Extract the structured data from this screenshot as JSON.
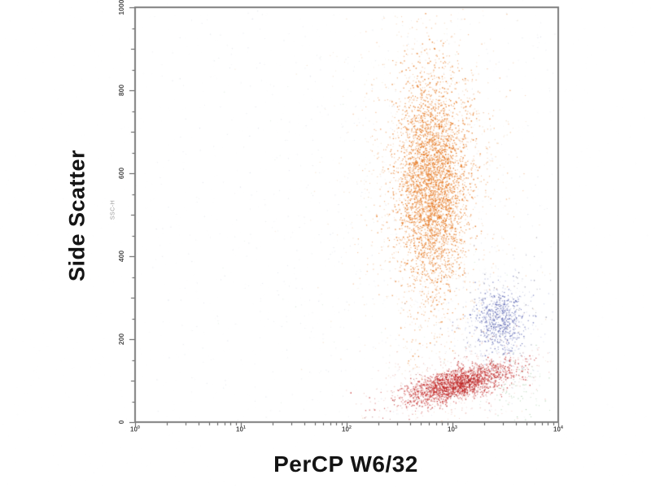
{
  "page": {
    "background": "#ffffff"
  },
  "chart_data": {
    "type": "scatter",
    "title": "",
    "xlabel": "PerCP W6/32",
    "ylabel": "Side Scatter",
    "axis_sublabel": "SSC-H",
    "x_scale": "log10",
    "x_decades": [
      0,
      4
    ],
    "x_tick_exponents": [
      0,
      1,
      2,
      3,
      4
    ],
    "ylim": [
      0,
      1000
    ],
    "y_major_ticks": [
      0,
      200,
      400,
      600,
      800,
      1000
    ],
    "y_minor_step": 50,
    "grid": false,
    "legend": "none",
    "frame_color": "#7d7d7d",
    "tick_color": "#555555",
    "tick_label_color": "#4f4f4f",
    "axis_title_color": "#141414",
    "populations": [
      {
        "name": "background-haze",
        "distribution": "uniform",
        "x_decade_range": [
          0.15,
          3.97
        ],
        "y_range": [
          10,
          995
        ],
        "count": 320,
        "color": "#9aa3b5",
        "alpha": 0.3,
        "radius": 0.9
      },
      {
        "name": "mid-haze",
        "distribution": "gaussian",
        "cx_decade": 2.65,
        "cy_units": 430,
        "sx_decade": 0.85,
        "sy_units": 270,
        "count": 300,
        "color": "#97a0b2",
        "alpha": 0.28,
        "radius": 0.9
      },
      {
        "name": "stray-blue-haze",
        "distribution": "uniform",
        "x_decade_range": [
          0.3,
          3.95
        ],
        "y_range": [
          10,
          980
        ],
        "count": 120,
        "color": "#7f8ab0",
        "alpha": 0.3,
        "radius": 0.9
      },
      {
        "name": "orange-halo",
        "distribution": "gaussian",
        "cx_decade": 2.8,
        "cy_units": 570,
        "sx_decade": 0.5,
        "sy_units": 310,
        "count": 550,
        "color": "#d99a55",
        "alpha": 0.35,
        "radius": 1
      },
      {
        "name": "orange-mid",
        "distribution": "gaussian",
        "cx_decade": 2.8,
        "cy_units": 580,
        "sx_decade": 0.27,
        "sy_units": 195,
        "count": 1300,
        "color": "#e8812d",
        "alpha": 0.55,
        "radius": 1.1
      },
      {
        "name": "orange-core",
        "distribution": "gaussian",
        "cx_decade": 2.8,
        "cy_units": 575,
        "sx_decade": 0.16,
        "sy_units": 125,
        "count": 2800,
        "color": "#e46f12",
        "alpha": 0.9,
        "radius": 1.2
      },
      {
        "name": "blue-halo",
        "distribution": "gaussian",
        "cx_decade": 3.44,
        "cy_units": 243,
        "sx_decade": 0.21,
        "sy_units": 68,
        "count": 260,
        "color": "#8590cc",
        "alpha": 0.5,
        "radius": 1
      },
      {
        "name": "blue-core",
        "distribution": "gaussian",
        "cx_decade": 3.44,
        "cy_units": 243,
        "sx_decade": 0.115,
        "sy_units": 37,
        "count": 520,
        "color": "#4a55aa",
        "alpha": 0.85,
        "radius": 1.1
      },
      {
        "name": "blue-dark-specks",
        "distribution": "gaussian",
        "cx_decade": 3.44,
        "cy_units": 243,
        "sx_decade": 0.26,
        "sy_units": 85,
        "count": 90,
        "color": "#3c4066",
        "alpha": 0.6,
        "radius": 1
      },
      {
        "name": "red-halo",
        "distribution": "gaussian",
        "cx_decade": 3.04,
        "cy_units": 95,
        "sx_decade": 0.4,
        "sy_units": 42,
        "tilt_deg": -14,
        "count": 480,
        "color": "#cf5a4a",
        "alpha": 0.4,
        "radius": 1
      },
      {
        "name": "red-core",
        "distribution": "gaussian",
        "cx_decade": 3.04,
        "cy_units": 93,
        "sx_decade": 0.27,
        "sy_units": 19,
        "tilt_deg": -14,
        "count": 1700,
        "color": "#c01d1d",
        "alpha": 0.85,
        "radius": 1.15
      },
      {
        "name": "red-dark-specks",
        "distribution": "gaussian",
        "cx_decade": 3.04,
        "cy_units": 93,
        "sx_decade": 0.3,
        "sy_units": 24,
        "tilt_deg": -14,
        "count": 160,
        "color": "#7c1212",
        "alpha": 0.7,
        "radius": 1
      },
      {
        "name": "green-accents",
        "distribution": "gaussian",
        "cx_decade": 3.62,
        "cy_units": 80,
        "sx_decade": 0.17,
        "sy_units": 48,
        "count": 80,
        "color": "#58a058",
        "alpha": 0.5,
        "radius": 1
      },
      {
        "name": "green-strays",
        "distribution": "uniform",
        "x_decade_range": [
          0.5,
          3.9
        ],
        "y_range": [
          15,
          900
        ],
        "count": 45,
        "color": "#86bb86",
        "alpha": 0.35,
        "radius": 0.9
      }
    ]
  }
}
